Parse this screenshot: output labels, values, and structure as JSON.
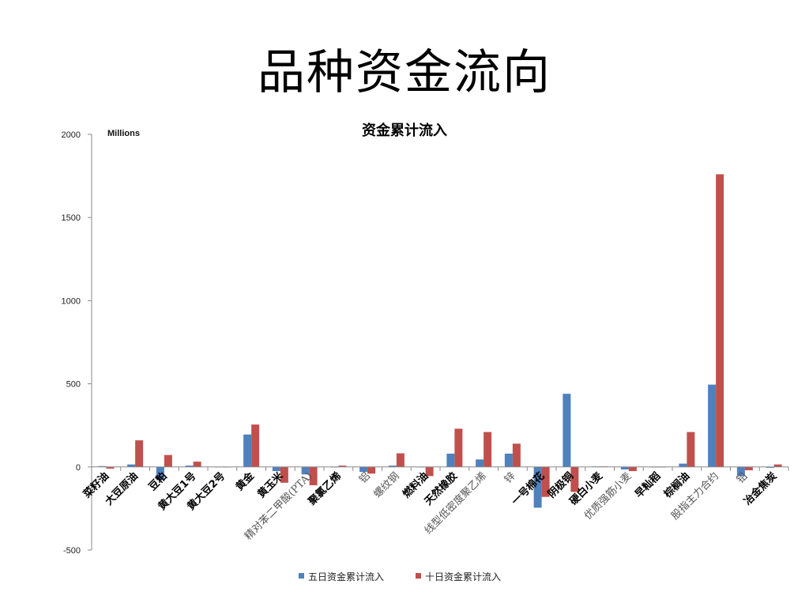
{
  "slide": {
    "title": "品种资金流向"
  },
  "chart_data": {
    "type": "bar",
    "title": "资金累计流入",
    "y_unit_label": "Millions",
    "ylim": [
      -500,
      2000
    ],
    "y_ticks": [
      -500,
      0,
      500,
      1000,
      1500,
      2000
    ],
    "grid": false,
    "legend_position": "bottom",
    "categories": [
      "菜籽油",
      "大豆原油",
      "豆粕",
      "黄大豆1号",
      "黄大豆2号",
      "黄金",
      "黄玉米",
      "精对苯二甲酸(PTA)",
      "聚氯乙烯",
      "铝",
      "螺纹钢",
      "燃料油",
      "天然橡胶",
      "线型低密度聚乙烯",
      "锌",
      "一号棉花",
      "阴极铜",
      "硬白小麦",
      "优质强筋小麦",
      "早籼稻",
      "棕榈油",
      "股指主力合约",
      "铅",
      "冶金焦炭"
    ],
    "category_styles": [
      "bold",
      "bold",
      "bold",
      "bold",
      "bold",
      "bold",
      "bold",
      "serif",
      "bold",
      "serif",
      "serif",
      "bold",
      "bold",
      "serif",
      "serif",
      "bold",
      "bold",
      "bold",
      "serif",
      "bold",
      "bold",
      "serif",
      "serif",
      "bold"
    ],
    "series": [
      {
        "name": "五日资金累计流入",
        "color": "#4F81BD",
        "values": [
          5,
          15,
          -75,
          8,
          0,
          195,
          -25,
          -45,
          -3,
          -30,
          8,
          -2,
          80,
          45,
          80,
          -245,
          440,
          3,
          -15,
          -3,
          20,
          495,
          -55,
          -5
        ]
      },
      {
        "name": "十日资金累计流入",
        "color": "#C0504D",
        "values": [
          -10,
          160,
          72,
          32,
          0,
          255,
          -95,
          -110,
          8,
          -40,
          82,
          -55,
          230,
          210,
          140,
          -180,
          -150,
          3,
          -25,
          -3,
          210,
          1760,
          -20,
          15
        ]
      }
    ]
  }
}
